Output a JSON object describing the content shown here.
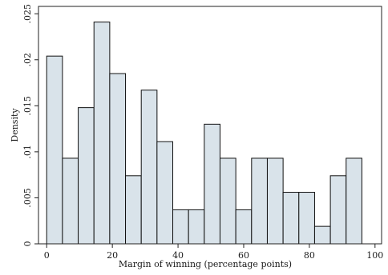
{
  "chart_data": {
    "type": "bar",
    "subtype": "histogram",
    "title": "",
    "xlabel": "Margin of winning (percentage points)",
    "ylabel": "Density",
    "bin_start": 0,
    "bin_width": 4.8,
    "values": [
      0.0204,
      0.0093,
      0.0148,
      0.0241,
      0.0185,
      0.0074,
      0.0167,
      0.0111,
      0.0037,
      0.0037,
      0.013,
      0.0093,
      0.0037,
      0.0093,
      0.0093,
      0.0056,
      0.0056,
      0.0019,
      0.0074,
      0.0093
    ],
    "xlim": [
      -2.5,
      102
    ],
    "ylim": [
      0,
      0.0258
    ],
    "xticks": [
      0,
      20,
      40,
      60,
      80,
      100
    ],
    "xtick_labels": [
      "0",
      "20",
      "40",
      "60",
      "80",
      "100"
    ],
    "yticks": [
      0,
      0.005,
      0.01,
      0.015,
      0.02,
      0.025
    ],
    "ytick_labels": [
      "0",
      ".005",
      ".01",
      ".015",
      ".02",
      ".025"
    ],
    "grid": false,
    "legend": "none",
    "colors": {
      "bar_fill": "#d9e3ea",
      "bar_stroke": "#111111",
      "axis": "#222222"
    }
  }
}
